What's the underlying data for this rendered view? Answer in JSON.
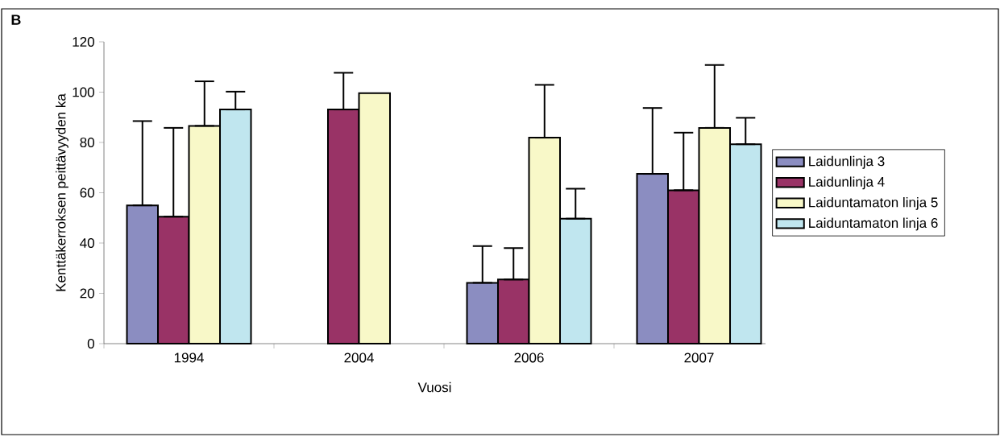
{
  "chart_data": {
    "type": "bar",
    "annotations": [
      "B"
    ],
    "xlabel": "Vuosi",
    "ylabel": "Kenttäkerroksen peittävyyden ka",
    "categories": [
      "1994",
      "2004",
      "2006",
      "2007"
    ],
    "series": [
      {
        "name": "Laidunlinja 3",
        "color": "#8b8dc1",
        "values": [
          55.0,
          null,
          24.2,
          67.5
        ],
        "errors": [
          [
            55.0,
            88.5
          ],
          null,
          [
            24.2,
            38.8
          ],
          [
            67.5,
            93.7
          ]
        ]
      },
      {
        "name": "Laidunlinja 4",
        "color": "#993366",
        "values": [
          50.5,
          93.1,
          25.5,
          61.0
        ],
        "errors": [
          [
            50.5,
            85.8
          ],
          [
            93.1,
            107.7
          ],
          [
            25.5,
            38.0
          ],
          [
            61.0,
            83.9
          ]
        ]
      },
      {
        "name": "Laiduntamaton linja 5",
        "color": "#f8f8c8",
        "values": [
          86.6,
          99.6,
          81.9,
          85.8
        ],
        "errors": [
          [
            86.6,
            104.3
          ],
          null,
          [
            81.9,
            102.9
          ],
          [
            85.8,
            110.8
          ]
        ]
      },
      {
        "name": "Laiduntamaton linja 6",
        "color": "#c0e6ef",
        "values": [
          93.1,
          null,
          49.7,
          79.3
        ],
        "errors": [
          [
            93.1,
            100.2
          ],
          null,
          [
            49.7,
            61.6
          ],
          [
            79.3,
            89.8
          ]
        ]
      }
    ],
    "ylim": [
      0,
      120
    ],
    "yticks": [
      0,
      20,
      40,
      60,
      80,
      100,
      120
    ],
    "legend": "right"
  }
}
